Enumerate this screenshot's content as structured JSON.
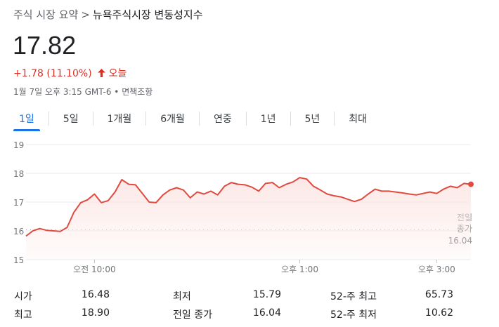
{
  "breadcrumb": {
    "parent": "주식 시장 요약",
    "separator": ">",
    "current": "뉴욕주식시장 변동성지수"
  },
  "quote": {
    "price": "17.82",
    "change": "+1.78 (11.10%)",
    "direction_icon": "arrow-up",
    "period": "오늘",
    "timestamp": "1월 7일 오후 3:15 GMT-6 • 면책조항"
  },
  "tabs": [
    {
      "label": "1일",
      "active": true
    },
    {
      "label": "5일",
      "active": false
    },
    {
      "label": "1개월",
      "active": false
    },
    {
      "label": "6개월",
      "active": false
    },
    {
      "label": "연중",
      "active": false
    },
    {
      "label": "1년",
      "active": false
    },
    {
      "label": "5년",
      "active": false
    },
    {
      "label": "최대",
      "active": false
    }
  ],
  "colors": {
    "line": "#e04a3f",
    "fill": "#fce8e6",
    "accent": "#1a73e8",
    "negative": "#d93025"
  },
  "chart_data": {
    "type": "line",
    "ylim": [
      15,
      19
    ],
    "y_ticks": [
      "19",
      "18",
      "17",
      "16",
      "15"
    ],
    "x_ticks": [
      {
        "label": "오전 10:00",
        "t": 60
      },
      {
        "label": "오후 1:00",
        "t": 240
      },
      {
        "label": "오후 3:00",
        "t": 360
      }
    ],
    "x_range": [
      0,
      390
    ],
    "prev_close": 16.04,
    "prev_close_label": [
      "전일",
      "종가",
      "16.04"
    ],
    "grid": true,
    "series": [
      {
        "points": [
          [
            0,
            15.82
          ],
          [
            6,
            16.0
          ],
          [
            12,
            16.08
          ],
          [
            18,
            16.02
          ],
          [
            24,
            16.0
          ],
          [
            30,
            15.98
          ],
          [
            36,
            16.12
          ],
          [
            42,
            16.65
          ],
          [
            48,
            16.98
          ],
          [
            54,
            17.08
          ],
          [
            60,
            17.28
          ],
          [
            66,
            16.98
          ],
          [
            72,
            17.05
          ],
          [
            78,
            17.35
          ],
          [
            84,
            17.78
          ],
          [
            90,
            17.62
          ],
          [
            96,
            17.6
          ],
          [
            102,
            17.3
          ],
          [
            108,
            17.0
          ],
          [
            114,
            16.98
          ],
          [
            120,
            17.25
          ],
          [
            126,
            17.42
          ],
          [
            132,
            17.5
          ],
          [
            138,
            17.42
          ],
          [
            144,
            17.15
          ],
          [
            150,
            17.35
          ],
          [
            156,
            17.28
          ],
          [
            162,
            17.38
          ],
          [
            168,
            17.25
          ],
          [
            174,
            17.55
          ],
          [
            180,
            17.68
          ],
          [
            186,
            17.62
          ],
          [
            192,
            17.6
          ],
          [
            198,
            17.52
          ],
          [
            204,
            17.38
          ],
          [
            210,
            17.65
          ],
          [
            216,
            17.68
          ],
          [
            222,
            17.5
          ],
          [
            228,
            17.62
          ],
          [
            234,
            17.7
          ],
          [
            240,
            17.85
          ],
          [
            246,
            17.8
          ],
          [
            252,
            17.55
          ],
          [
            258,
            17.42
          ],
          [
            264,
            17.28
          ],
          [
            270,
            17.22
          ],
          [
            276,
            17.18
          ],
          [
            282,
            17.1
          ],
          [
            288,
            17.02
          ],
          [
            294,
            17.1
          ],
          [
            300,
            17.28
          ],
          [
            306,
            17.45
          ],
          [
            312,
            17.38
          ],
          [
            318,
            17.38
          ],
          [
            324,
            17.35
          ],
          [
            330,
            17.32
          ],
          [
            336,
            17.28
          ],
          [
            342,
            17.25
          ],
          [
            348,
            17.3
          ],
          [
            354,
            17.35
          ],
          [
            360,
            17.3
          ],
          [
            366,
            17.45
          ],
          [
            372,
            17.55
          ],
          [
            378,
            17.5
          ],
          [
            384,
            17.65
          ],
          [
            390,
            17.62
          ]
        ]
      }
    ]
  },
  "stats": {
    "rows": [
      [
        {
          "label": "시가",
          "value": "16.48"
        },
        {
          "label": "최저",
          "value": "15.79"
        },
        {
          "label": "52-주 최고",
          "value": "65.73"
        }
      ],
      [
        {
          "label": "최고",
          "value": "18.90"
        },
        {
          "label": "전일 종가",
          "value": "16.04"
        },
        {
          "label": "52-주 최저",
          "value": "10.62"
        }
      ]
    ]
  }
}
